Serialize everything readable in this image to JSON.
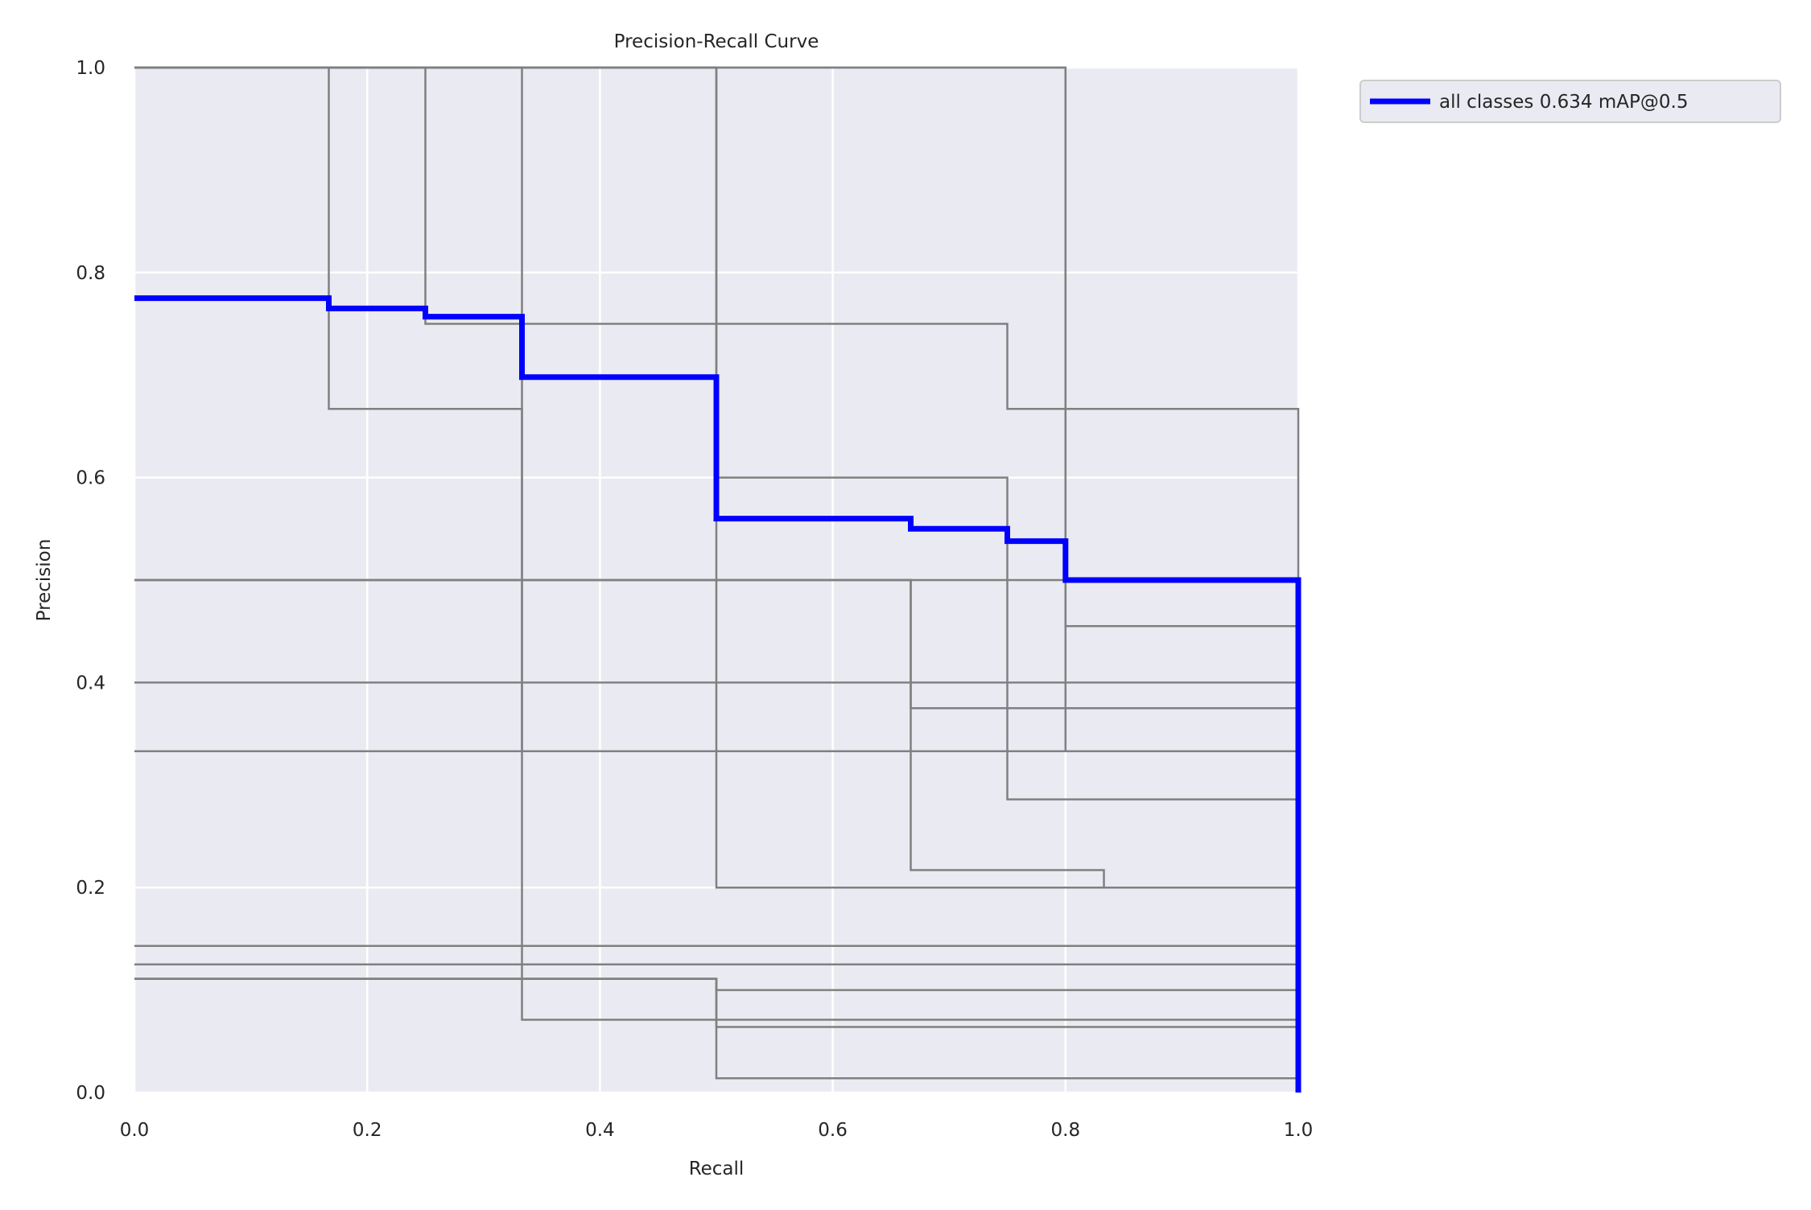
{
  "chart_data": {
    "type": "line",
    "title": "Precision-Recall Curve",
    "xlabel": "Recall",
    "ylabel": "Precision",
    "xlim": [
      0,
      1
    ],
    "ylim": [
      0,
      1
    ],
    "xticks": [
      0.0,
      0.2,
      0.4,
      0.6,
      0.8,
      1.0
    ],
    "yticks": [
      0.0,
      0.2,
      0.4,
      0.6,
      0.8,
      1.0
    ],
    "xtick_labels": [
      "0.0",
      "0.2",
      "0.4",
      "0.6",
      "0.8",
      "1.0"
    ],
    "ytick_labels": [
      "0.0",
      "0.2",
      "0.4",
      "0.6",
      "0.8",
      "1.0"
    ],
    "grid": true,
    "legend_position": "outside-top-right",
    "colors": {
      "background": "#eaeaf2",
      "grid": "#ffffff",
      "class_line": "#808080",
      "mean_line": "#0000ff"
    },
    "class_series": [
      {
        "points": [
          [
            0,
            1.0
          ],
          [
            0.167,
            1.0
          ],
          [
            0.167,
            0.667
          ],
          [
            0.333,
            0.667
          ],
          [
            0.333,
            0.071
          ],
          [
            1.0,
            0.071
          ],
          [
            1.0,
            0
          ]
        ]
      },
      {
        "points": [
          [
            0,
            1.0
          ],
          [
            0.25,
            1.0
          ],
          [
            0.25,
            0.75
          ],
          [
            0.75,
            0.75
          ],
          [
            0.75,
            0.667
          ],
          [
            1.0,
            0.667
          ],
          [
            1.0,
            0
          ]
        ]
      },
      {
        "points": [
          [
            0,
            1.0
          ],
          [
            0.333,
            1.0
          ],
          [
            0.333,
            0.333
          ],
          [
            1.0,
            0.333
          ],
          [
            1.0,
            0
          ]
        ]
      },
      {
        "points": [
          [
            0,
            1.0
          ],
          [
            0.5,
            1.0
          ],
          [
            0.5,
            0.6
          ],
          [
            0.75,
            0.6
          ],
          [
            0.75,
            0.286
          ],
          [
            1.0,
            0.286
          ],
          [
            1.0,
            0
          ]
        ]
      },
      {
        "points": [
          [
            0,
            1.0
          ],
          [
            0.5,
            1.0
          ],
          [
            0.5,
            0.2
          ],
          [
            1.0,
            0.2
          ],
          [
            1.0,
            0
          ]
        ]
      },
      {
        "points": [
          [
            0,
            1.0
          ],
          [
            0.8,
            1.0
          ],
          [
            0.8,
            0.455
          ],
          [
            1.0,
            0.455
          ],
          [
            1.0,
            0
          ]
        ]
      },
      {
        "points": [
          [
            0,
            1.0
          ],
          [
            0.8,
            1.0
          ],
          [
            0.8,
            0.333
          ],
          [
            1.0,
            0.333
          ],
          [
            1.0,
            0
          ]
        ]
      },
      {
        "points": [
          [
            0,
            0.5
          ],
          [
            0.667,
            0.5
          ],
          [
            0.667,
            0.375
          ],
          [
            1.0,
            0.375
          ],
          [
            1.0,
            0
          ]
        ]
      },
      {
        "points": [
          [
            0,
            0.5
          ],
          [
            0.667,
            0.5
          ],
          [
            0.667,
            0.217
          ],
          [
            0.833,
            0.217
          ],
          [
            0.833,
            0.2
          ],
          [
            1.0,
            0.2
          ],
          [
            1.0,
            0
          ]
        ]
      },
      {
        "points": [
          [
            0,
            0.5
          ],
          [
            1.0,
            0.5
          ],
          [
            1.0,
            0
          ]
        ]
      },
      {
        "points": [
          [
            0,
            0.4
          ],
          [
            1.0,
            0.4
          ],
          [
            1.0,
            0
          ]
        ]
      },
      {
        "points": [
          [
            0,
            0.333
          ],
          [
            1.0,
            0.333
          ],
          [
            1.0,
            0
          ]
        ]
      },
      {
        "points": [
          [
            0,
            0.143
          ],
          [
            1.0,
            0.143
          ],
          [
            1.0,
            0
          ]
        ]
      },
      {
        "points": [
          [
            0,
            0.125
          ],
          [
            1.0,
            0.125
          ],
          [
            1.0,
            0
          ]
        ]
      },
      {
        "points": [
          [
            0,
            0.111
          ],
          [
            0.5,
            0.111
          ],
          [
            0.5,
            0.1
          ],
          [
            1.0,
            0.1
          ],
          [
            1.0,
            0
          ]
        ]
      },
      {
        "points": [
          [
            0,
            0.111
          ],
          [
            0.5,
            0.111
          ],
          [
            0.5,
            0.064
          ],
          [
            1.0,
            0.064
          ],
          [
            1.0,
            0
          ]
        ]
      },
      {
        "points": [
          [
            0,
            0.111
          ],
          [
            0.5,
            0.111
          ],
          [
            0.5,
            0.014
          ],
          [
            1.0,
            0.014
          ],
          [
            1.0,
            0
          ]
        ]
      }
    ],
    "mean_series": {
      "name": "all classes 0.634 mAP@0.5",
      "points": [
        [
          0,
          0.775
        ],
        [
          0.167,
          0.775
        ],
        [
          0.167,
          0.765
        ],
        [
          0.25,
          0.765
        ],
        [
          0.25,
          0.757
        ],
        [
          0.333,
          0.757
        ],
        [
          0.333,
          0.698
        ],
        [
          0.5,
          0.698
        ],
        [
          0.5,
          0.56
        ],
        [
          0.667,
          0.56
        ],
        [
          0.667,
          0.55
        ],
        [
          0.75,
          0.55
        ],
        [
          0.75,
          0.538
        ],
        [
          0.8,
          0.538
        ],
        [
          0.8,
          0.5
        ],
        [
          1.0,
          0.5
        ],
        [
          1.0,
          0
        ]
      ]
    }
  }
}
